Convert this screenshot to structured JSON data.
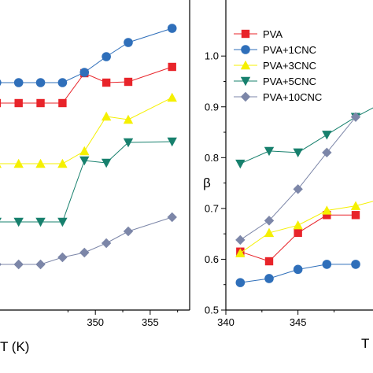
{
  "colors": {
    "PVA": "#e8242a",
    "PVA+1CNC": "#2f6fba",
    "PVA+3CNC": "#f5f000",
    "PVA+5CNC": "#17806d",
    "PVA+10CNC": "#7c86a8"
  },
  "chart_data": [
    {
      "panel": "left",
      "type": "line",
      "xlabel": "T (K)",
      "ylabel": "",
      "xlim": [
        341.3,
        358.6
      ],
      "xticks": [
        350,
        355
      ],
      "series": [
        {
          "name": "PVA",
          "marker": "square",
          "x": [
            341,
            343,
            345,
            347,
            349,
            351,
            353,
            357
          ],
          "y": [
            131,
            131,
            131,
            131,
            93,
            105,
            104,
            85
          ]
        },
        {
          "name": "PVA+1CNC",
          "marker": "circle",
          "x": [
            341,
            343,
            345,
            347,
            349,
            351,
            353,
            357
          ],
          "y": [
            105,
            105,
            105,
            105,
            92,
            72,
            54,
            36
          ]
        },
        {
          "name": "PVA+3CNC",
          "marker": "triangle-up",
          "x": [
            341,
            343,
            345,
            347,
            349,
            351,
            353,
            357
          ],
          "y": [
            208,
            208,
            208,
            208,
            192,
            148,
            152,
            124
          ]
        },
        {
          "name": "PVA+5CNC",
          "marker": "triangle-down",
          "x": [
            341,
            343,
            345,
            347,
            349,
            351,
            353,
            357
          ],
          "y": [
            282,
            282,
            282,
            282,
            204,
            207,
            181,
            180
          ]
        },
        {
          "name": "PVA+10CNC",
          "marker": "diamond",
          "x": [
            341,
            343,
            345,
            347,
            349,
            351,
            353,
            357
          ],
          "y": [
            336,
            336,
            336,
            327,
            321,
            309,
            294,
            276
          ]
        }
      ]
    },
    {
      "panel": "right",
      "type": "line",
      "xlabel": "T",
      "ylabel": "β",
      "xlim": [
        340,
        350.2
      ],
      "ylim": [
        0.5,
        1.07
      ],
      "xticks": [
        340,
        345
      ],
      "yticks": [
        0.5,
        0.6,
        0.7,
        0.8,
        0.9,
        1.0
      ],
      "yticklabels": [
        "0.5",
        "0.6",
        "0.7",
        "0.8",
        "0.9",
        "1.0"
      ],
      "xticklabels": [
        "340",
        "345"
      ],
      "legend": "top-right",
      "series": [
        {
          "name": "PVA",
          "marker": "square",
          "x": [
            341,
            343,
            345,
            347,
            349
          ],
          "y": [
            0.615,
            0.596,
            0.652,
            0.687,
            0.687
          ]
        },
        {
          "name": "PVA+1CNC",
          "marker": "circle",
          "x": [
            341,
            343,
            345,
            347,
            349
          ],
          "y": [
            0.554,
            0.562,
            0.58,
            0.59,
            0.59
          ]
        },
        {
          "name": "PVA+3CNC",
          "marker": "triangle-up",
          "x": [
            341,
            343,
            345,
            347,
            349,
            351
          ],
          "y": [
            0.612,
            0.652,
            0.667,
            0.696,
            0.705,
            0.72
          ]
        },
        {
          "name": "PVA+5CNC",
          "marker": "triangle-down",
          "x": [
            341,
            343,
            345,
            347,
            349,
            351
          ],
          "y": [
            0.788,
            0.813,
            0.81,
            0.845,
            0.88,
            0.91
          ]
        },
        {
          "name": "PVA+10CNC",
          "marker": "diamond",
          "x": [
            341,
            343,
            345,
            347,
            349
          ],
          "y": [
            0.638,
            0.676,
            0.738,
            0.81,
            0.88
          ]
        }
      ]
    }
  ],
  "left_ticklabels": [
    "350",
    "355"
  ]
}
